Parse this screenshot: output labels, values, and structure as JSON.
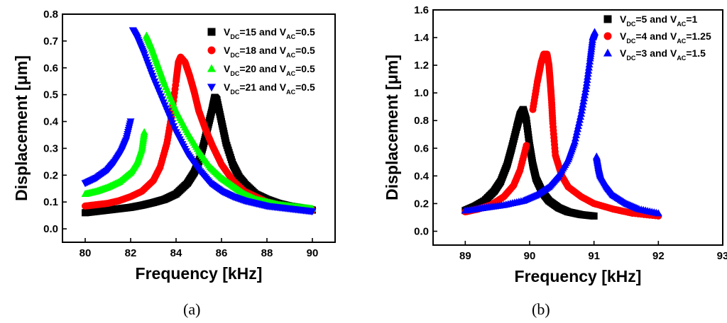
{
  "chart_data": [
    {
      "type": "scatter",
      "panel_label": "(a)",
      "xlabel": "Frequency [kHz]",
      "ylabel": "Displacement [μm]",
      "xlim": [
        79,
        91
      ],
      "ylim": [
        -0.05,
        0.8
      ],
      "xticks": [
        80,
        82,
        84,
        86,
        88,
        90
      ],
      "yticks": [
        0.0,
        0.1,
        0.2,
        0.3,
        0.4,
        0.5,
        0.6,
        0.7,
        0.8
      ],
      "ytick_labels": [
        "0.0",
        "0.1",
        "0.2",
        "0.3",
        "0.4",
        "0.5",
        "0.6",
        "0.7",
        "0.8"
      ],
      "legend_position": "top-right",
      "series": [
        {
          "label": "V_DC=15 and V_AC=0.5",
          "sub1": "DC",
          "sub2": "AC",
          "pre": "V",
          "mid": "=15 and V",
          "post": "=0.5",
          "color": "#000000",
          "marker": "square",
          "x": [
            80.0,
            80.5,
            81.0,
            81.5,
            82.0,
            82.5,
            83.0,
            83.5,
            84.0,
            84.5,
            84.8,
            85.0,
            85.2,
            85.4,
            85.6,
            85.7,
            85.8,
            86.0,
            86.2,
            86.5,
            86.8,
            87.0,
            87.5,
            88.0,
            88.5,
            89.0,
            89.5,
            90.0
          ],
          "y": [
            0.06,
            0.065,
            0.07,
            0.075,
            0.08,
            0.088,
            0.098,
            0.11,
            0.13,
            0.17,
            0.21,
            0.25,
            0.31,
            0.38,
            0.45,
            0.49,
            0.48,
            0.4,
            0.32,
            0.24,
            0.19,
            0.17,
            0.13,
            0.11,
            0.095,
            0.085,
            0.078,
            0.07
          ]
        },
        {
          "label": "V_DC=18 and V_AC=0.5",
          "sub1": "DC",
          "sub2": "AC",
          "pre": "V",
          "mid": "=18 and V",
          "post": "=0.5",
          "color": "#ff0000",
          "marker": "circle",
          "x": [
            80.0,
            80.5,
            81.0,
            81.5,
            82.0,
            82.5,
            83.0,
            83.3,
            83.6,
            83.8,
            84.0,
            84.1,
            84.2,
            84.4,
            84.6,
            84.8,
            85.0,
            85.3,
            85.6,
            86.0,
            86.5,
            87.0,
            87.5,
            88.0,
            88.5,
            89.0,
            89.5,
            90.0
          ],
          "y": [
            0.085,
            0.09,
            0.095,
            0.105,
            0.12,
            0.14,
            0.18,
            0.23,
            0.32,
            0.42,
            0.55,
            0.62,
            0.64,
            0.62,
            0.57,
            0.51,
            0.44,
            0.37,
            0.31,
            0.24,
            0.18,
            0.14,
            0.12,
            0.1,
            0.09,
            0.08,
            0.075,
            0.07
          ]
        },
        {
          "label": "V_DC=20 and V_AC=0.5",
          "sub1": "DC",
          "sub2": "AC",
          "pre": "V",
          "mid": "=20 and V",
          "post": "=0.5",
          "color": "#00ff00",
          "marker": "triangle-up",
          "x": [
            80.0,
            80.5,
            81.0,
            81.5,
            82.0,
            82.3,
            82.5,
            82.6,
            82.7,
            82.9,
            83.2,
            83.5,
            84.0,
            84.5,
            85.0,
            85.5,
            86.0,
            86.5,
            87.0,
            87.5,
            88.0,
            88.5,
            89.0,
            89.5,
            90.0
          ],
          "y": [
            0.13,
            0.14,
            0.155,
            0.175,
            0.21,
            0.25,
            0.3,
            0.36,
            0.72,
            0.68,
            0.61,
            0.54,
            0.44,
            0.36,
            0.29,
            0.23,
            0.19,
            0.16,
            0.13,
            0.11,
            0.1,
            0.09,
            0.085,
            0.08,
            0.075
          ]
        },
        {
          "label": "V_DC=21 and V_AC=0.5",
          "sub1": "DC",
          "sub2": "AC",
          "pre": "V",
          "mid": "=21 and V",
          "post": "=0.5",
          "color": "#0000ff",
          "marker": "triangle-down",
          "x": [
            80.0,
            80.5,
            81.0,
            81.3,
            81.6,
            81.8,
            82.0,
            82.1,
            82.3,
            82.6,
            83.0,
            83.5,
            84.0,
            84.5,
            85.0,
            85.5,
            86.0,
            86.5,
            87.0,
            87.5,
            88.0,
            88.5,
            89.0,
            89.5,
            90.0
          ],
          "y": [
            0.17,
            0.19,
            0.22,
            0.25,
            0.29,
            0.33,
            0.4,
            0.74,
            0.71,
            0.65,
            0.56,
            0.46,
            0.36,
            0.28,
            0.22,
            0.17,
            0.14,
            0.12,
            0.105,
            0.095,
            0.085,
            0.08,
            0.075,
            0.07,
            0.065
          ]
        }
      ]
    },
    {
      "type": "scatter",
      "panel_label": "(b)",
      "xlabel": "Frequency [kHz]",
      "ylabel": "Displacement [μm]",
      "xlim": [
        88.5,
        93
      ],
      "ylim": [
        -0.1,
        1.6
      ],
      "xticks": [
        89,
        90,
        91,
        92,
        93
      ],
      "yticks": [
        0.0,
        0.2,
        0.4,
        0.6,
        0.8,
        1.0,
        1.2,
        1.4,
        1.6
      ],
      "ytick_labels": [
        "0.0",
        "0.2",
        "0.4",
        "0.6",
        "0.8",
        "1.0",
        "1.2",
        "1.4",
        "1.6"
      ],
      "legend_position": "top-right",
      "series": [
        {
          "label": "V_DC=5 and V_AC=1",
          "sub1": "DC",
          "sub2": "AC",
          "pre": "V",
          "mid": "=5 and V",
          "post": "=1",
          "color": "#000000",
          "marker": "square",
          "x": [
            89.0,
            89.15,
            89.3,
            89.45,
            89.55,
            89.65,
            89.72,
            89.8,
            89.85,
            89.9,
            89.95,
            90.0,
            90.05,
            90.1,
            90.2,
            90.3,
            90.45,
            90.6,
            90.8,
            91.0
          ],
          "y": [
            0.15,
            0.18,
            0.22,
            0.29,
            0.36,
            0.48,
            0.6,
            0.75,
            0.84,
            0.88,
            0.8,
            0.62,
            0.48,
            0.38,
            0.28,
            0.22,
            0.17,
            0.14,
            0.12,
            0.11
          ]
        },
        {
          "label": "V_DC=4 and V_AC=1.25",
          "sub1": "DC",
          "sub2": "AC",
          "pre": "V",
          "mid": "=4 and V",
          "post": "=1.25",
          "color": "#ff0000",
          "marker": "circle",
          "x": [
            89.0,
            89.2,
            89.4,
            89.6,
            89.75,
            89.85,
            89.95,
            90.05,
            90.12,
            90.18,
            90.22,
            90.27,
            90.3,
            90.32,
            90.34,
            90.36,
            90.4,
            90.5,
            90.6,
            90.8,
            91.0,
            91.3,
            91.6,
            92.0
          ],
          "y": [
            0.14,
            0.16,
            0.19,
            0.25,
            0.33,
            0.44,
            0.62,
            0.88,
            1.08,
            1.22,
            1.28,
            1.28,
            1.2,
            1.08,
            0.95,
            0.78,
            0.55,
            0.4,
            0.32,
            0.25,
            0.2,
            0.16,
            0.13,
            0.11
          ]
        },
        {
          "label": "V_DC=3 and V_AC=1.5",
          "sub1": "DC",
          "sub2": "AC",
          "pre": "V",
          "mid": "=3 and V",
          "post": "=1.5",
          "color": "#0000ff",
          "marker": "triangle-up",
          "x": [
            89.0,
            89.3,
            89.6,
            89.9,
            90.1,
            90.3,
            90.45,
            90.6,
            90.7,
            90.8,
            90.88,
            90.94,
            90.98,
            91.01,
            91.04,
            91.07,
            91.1,
            91.2,
            91.3,
            91.5,
            91.7,
            92.0
          ],
          "y": [
            0.15,
            0.17,
            0.19,
            0.22,
            0.26,
            0.32,
            0.4,
            0.52,
            0.65,
            0.85,
            1.05,
            1.25,
            1.4,
            1.44,
            0.54,
            0.46,
            0.4,
            0.32,
            0.26,
            0.2,
            0.16,
            0.13
          ]
        }
      ]
    }
  ]
}
